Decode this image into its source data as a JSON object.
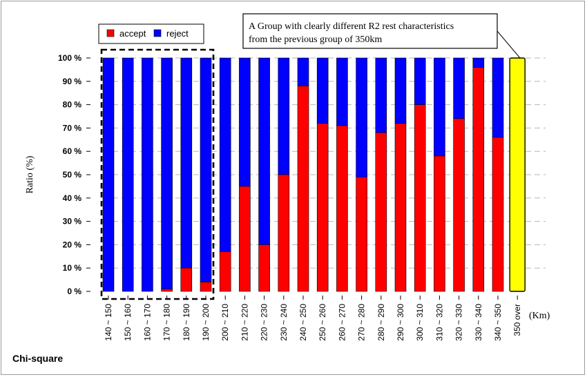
{
  "footer_label": "Chi-square",
  "chart_data": {
    "type": "bar",
    "stacked": true,
    "categories": [
      "140 ~ 150",
      "150 ~ 160",
      "160 ~ 170",
      "170 ~ 180",
      "180 ~ 190",
      "190 ~ 200",
      "200 ~ 210",
      "210 ~ 220",
      "220 ~ 230",
      "230 ~ 240",
      "240 ~ 250",
      "250 ~ 260",
      "260 ~ 270",
      "270 ~ 280",
      "280 ~ 290",
      "290 ~ 300",
      "300 ~ 310",
      "310 ~ 320",
      "320 ~ 330",
      "330 ~ 340",
      "340 ~ 350",
      "350 over"
    ],
    "series": [
      {
        "name": "accept",
        "color": "#ff0000",
        "values": [
          0,
          0,
          0,
          1,
          10,
          4,
          17,
          45,
          20,
          50,
          88,
          72,
          71,
          49,
          68,
          72,
          80,
          58,
          74,
          96,
          66,
          null
        ]
      },
      {
        "name": "reject",
        "color": "#0000ff",
        "values": [
          100,
          100,
          100,
          99,
          90,
          96,
          83,
          55,
          80,
          50,
          12,
          28,
          29,
          51,
          32,
          28,
          20,
          42,
          26,
          4,
          34,
          null
        ]
      }
    ],
    "highlight": {
      "category": "350 over",
      "value": 100,
      "color": "#ffff00"
    },
    "ylabel": "Ratio (%)",
    "xunit": "(Km)",
    "ylim": [
      0,
      100
    ],
    "yticks": [
      "0 %",
      "10 %",
      "20 %",
      "30 %",
      "40 %",
      "50 %",
      "60 %",
      "70 %",
      "80 %",
      "90 %",
      "100 %"
    ],
    "grid": "horizontal dashed",
    "legend": {
      "position": "top-left",
      "items": [
        "accept",
        "reject"
      ]
    },
    "annotation": {
      "lines": [
        "A Group with clearly different R2 rest characteristics",
        "from the previous group of 350km"
      ]
    },
    "dashed_box_categories": [
      "140 ~ 150",
      "190 ~ 200"
    ]
  }
}
